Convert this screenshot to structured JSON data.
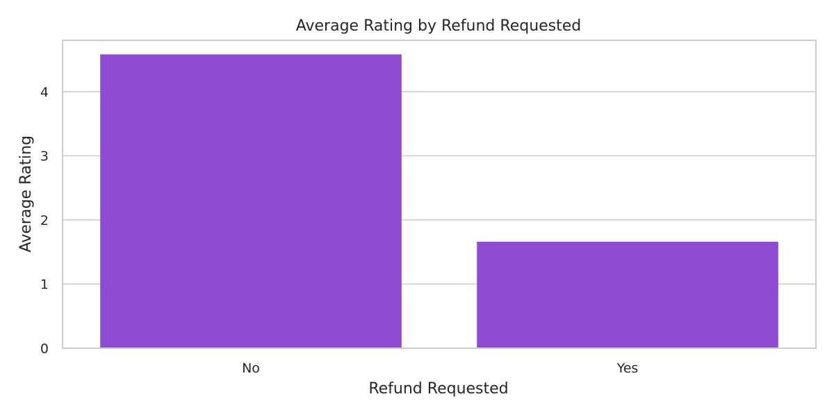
{
  "chart_data": {
    "type": "bar",
    "title": "Average Rating by Refund Requested",
    "xlabel": "Refund Requested",
    "ylabel": "Average Rating",
    "categories": [
      "No",
      "Yes"
    ],
    "values": [
      4.58,
      1.66
    ],
    "ylim": [
      0,
      4.8
    ],
    "yticks": [
      0,
      1,
      2,
      3,
      4
    ],
    "grid": "horizontal",
    "bar_color": "#8e4ad3",
    "grid_color": "#cccccc",
    "spine_color": "#cccccc"
  }
}
